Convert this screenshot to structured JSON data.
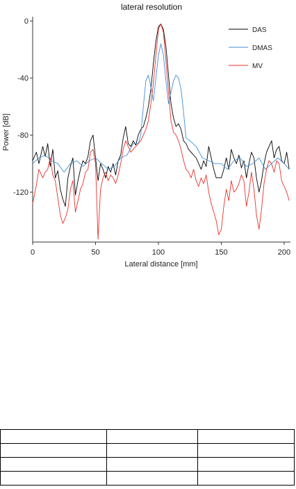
{
  "chart_data": {
    "type": "line",
    "title": "lateral resolution",
    "xlabel": "Lateral distance [mm]",
    "ylabel": "Power [dB]",
    "xlim": [
      0,
      205
    ],
    "ylim": [
      -155,
      3
    ],
    "xticks": [
      0,
      50,
      100,
      150,
      200
    ],
    "yticks": [
      0,
      -40,
      -80,
      -120
    ],
    "grid": false,
    "legend_position": "top-right",
    "series": [
      {
        "name": "DAS",
        "color": "#000000",
        "x": [
          0,
          3,
          5,
          8,
          10,
          12,
          14,
          16,
          18,
          20,
          22,
          24,
          26,
          28,
          30,
          32,
          34,
          36,
          38,
          40,
          42,
          44,
          46,
          48,
          50,
          52,
          54,
          56,
          58,
          60,
          62,
          64,
          66,
          68,
          70,
          72,
          74,
          76,
          78,
          80,
          82,
          84,
          86,
          88,
          90,
          92,
          94,
          96,
          98,
          100,
          102,
          104,
          106,
          108,
          110,
          112,
          114,
          116,
          118,
          120,
          122,
          124,
          126,
          128,
          130,
          132,
          134,
          136,
          138,
          140,
          142,
          144,
          146,
          148,
          150,
          152,
          154,
          156,
          158,
          160,
          162,
          164,
          166,
          168,
          170,
          172,
          174,
          176,
          178,
          180,
          182,
          184,
          186,
          188,
          190,
          192,
          194,
          196,
          198,
          200,
          202,
          204
        ],
        "values": [
          -98,
          -92,
          -100,
          -88,
          -95,
          -86,
          -102,
          -90,
          -110,
          -105,
          -118,
          -125,
          -130,
          -110,
          -102,
          -96,
          -122,
          -112,
          -104,
          -98,
          -100,
          -95,
          -84,
          -80,
          -96,
          -112,
          -100,
          -104,
          -110,
          -102,
          -106,
          -100,
          -108,
          -98,
          -94,
          -82,
          -74,
          -86,
          -88,
          -84,
          -87,
          -80,
          -76,
          -74,
          -68,
          -60,
          -48,
          -30,
          -14,
          -4,
          -2,
          -6,
          -18,
          -38,
          -58,
          -68,
          -74,
          -72,
          -76,
          -84,
          -86,
          -90,
          -92,
          -94,
          -96,
          -100,
          -104,
          -98,
          -102,
          -88,
          -96,
          -104,
          -110,
          -110,
          -110,
          -104,
          -96,
          -104,
          -90,
          -96,
          -100,
          -94,
          -103,
          -98,
          -110,
          -100,
          -92,
          -96,
          -110,
          -120,
          -112,
          -100,
          -92,
          -88,
          -84,
          -96,
          -90,
          -88,
          -98,
          -100,
          -92,
          -104
        ]
      },
      {
        "name": "DMAS",
        "color": "#3f8fd8",
        "x": [
          0,
          5,
          10,
          15,
          20,
          25,
          30,
          35,
          40,
          45,
          50,
          55,
          60,
          65,
          70,
          75,
          80,
          84,
          86,
          88,
          90,
          92,
          94,
          96,
          98,
          100,
          102,
          104,
          106,
          108,
          110,
          112,
          114,
          116,
          118,
          120,
          122,
          125,
          130,
          135,
          140,
          145,
          150,
          155,
          160,
          165,
          170,
          175,
          180,
          185,
          190,
          195,
          200,
          204
        ],
        "values": [
          -100,
          -96,
          -94,
          -98,
          -100,
          -106,
          -100,
          -98,
          -102,
          -98,
          -96,
          -100,
          -104,
          -102,
          -96,
          -94,
          -86,
          -86,
          -80,
          -60,
          -42,
          -38,
          -46,
          -56,
          -40,
          -24,
          -16,
          -24,
          -42,
          -58,
          -50,
          -42,
          -38,
          -40,
          -48,
          -64,
          -82,
          -84,
          -88,
          -96,
          -98,
          -100,
          -100,
          -104,
          -98,
          -96,
          -102,
          -100,
          -96,
          -104,
          -100,
          -96,
          -100,
          -104
        ]
      },
      {
        "name": "MV",
        "color": "#e8302a",
        "x": [
          0,
          3,
          5,
          8,
          10,
          12,
          14,
          16,
          18,
          20,
          22,
          24,
          26,
          28,
          30,
          32,
          34,
          36,
          38,
          40,
          42,
          44,
          46,
          48,
          50,
          52,
          54,
          56,
          58,
          60,
          62,
          64,
          66,
          68,
          70,
          72,
          74,
          76,
          78,
          80,
          82,
          84,
          86,
          88,
          90,
          92,
          94,
          96,
          98,
          100,
          102,
          104,
          106,
          108,
          110,
          112,
          114,
          116,
          118,
          120,
          122,
          124,
          126,
          128,
          130,
          132,
          134,
          136,
          138,
          140,
          142,
          144,
          146,
          148,
          150,
          152,
          154,
          156,
          158,
          160,
          162,
          164,
          166,
          168,
          170,
          172,
          174,
          176,
          178,
          180,
          182,
          184,
          186,
          188,
          190,
          192,
          194,
          196,
          198,
          200,
          202,
          204
        ],
        "values": [
          -128,
          -115,
          -104,
          -110,
          -106,
          -104,
          -96,
          -108,
          -112,
          -124,
          -136,
          -142,
          -138,
          -132,
          -118,
          -112,
          -134,
          -126,
          -118,
          -114,
          -106,
          -104,
          -92,
          -90,
          -100,
          -153,
          -118,
          -110,
          -106,
          -112,
          -108,
          -110,
          -114,
          -108,
          -100,
          -90,
          -84,
          -88,
          -92,
          -90,
          -88,
          -86,
          -84,
          -80,
          -76,
          -70,
          -58,
          -44,
          -24,
          -6,
          -2,
          -8,
          -28,
          -50,
          -70,
          -78,
          -80,
          -84,
          -90,
          -98,
          -104,
          -106,
          -110,
          -104,
          -112,
          -116,
          -110,
          -114,
          -108,
          -120,
          -128,
          -134,
          -140,
          -150,
          -146,
          -130,
          -118,
          -126,
          -112,
          -120,
          -118,
          -114,
          -108,
          -112,
          -130,
          -120,
          -106,
          -118,
          -136,
          -146,
          -132,
          -114,
          -104,
          -98,
          -100,
          -106,
          -98,
          -100,
          -112,
          -116,
          -120,
          -126
        ]
      }
    ]
  }
}
